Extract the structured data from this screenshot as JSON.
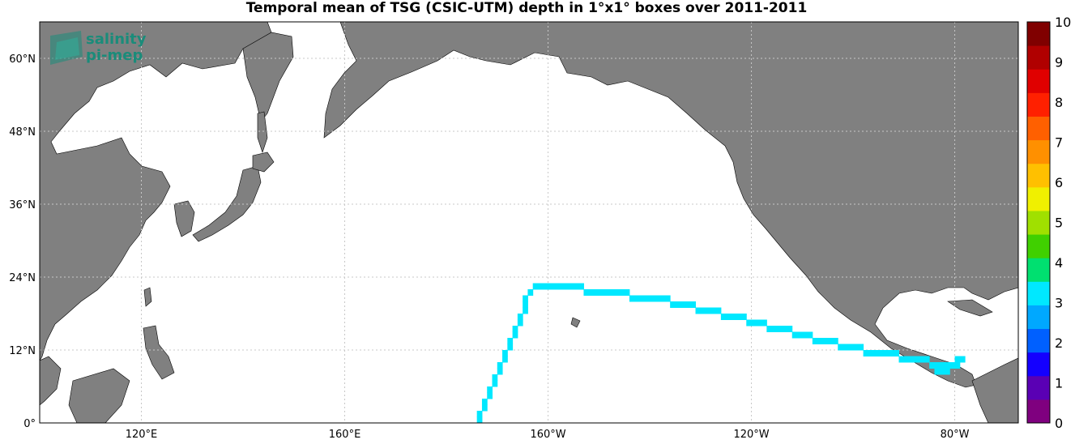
{
  "title": "Temporal mean of TSG (CSIC-UTM) depth in 1°x1° boxes over 2011-2011",
  "logo": {
    "line1": "salinity",
    "line2": "pi-mep",
    "color": "#1a8c7a"
  },
  "colors": {
    "land": "#808080",
    "ocean": "#ffffff",
    "grid": "#c8c8c8",
    "track": "#00bfff"
  },
  "map_extent": {
    "lon_min": 100,
    "lon_max": 292.5,
    "lat_min": 0,
    "lat_max": 66
  },
  "lat_labels": [
    {
      "lat": 60,
      "text": "60°N"
    },
    {
      "lat": 48,
      "text": "48°N"
    },
    {
      "lat": 36,
      "text": "36°N"
    },
    {
      "lat": 24,
      "text": "24°N"
    },
    {
      "lat": 12,
      "text": "12°N"
    },
    {
      "lat": 0,
      "text": "0°"
    }
  ],
  "lon_labels": [
    {
      "lon": 120,
      "text": "120°E"
    },
    {
      "lon": 160,
      "text": "160°E"
    },
    {
      "lon": 200,
      "text": "160°W"
    },
    {
      "lon": 240,
      "text": "120°W"
    },
    {
      "lon": 280,
      "text": "80°W"
    }
  ],
  "colorbar": {
    "min": 0,
    "max": 10,
    "ticks": [
      "0",
      "1",
      "2",
      "3",
      "4",
      "5",
      "6",
      "7",
      "8",
      "9",
      "10"
    ],
    "colors": [
      "#7f007f",
      "#5a00b4",
      "#1400ff",
      "#0060ff",
      "#00a8ff",
      "#00e8ff",
      "#00e070",
      "#40d000",
      "#a0e000",
      "#f0f000",
      "#ffc000",
      "#ff9000",
      "#ff6000",
      "#ff2000",
      "#e00000",
      "#b00000",
      "#800000"
    ]
  },
  "chart_data": {
    "type": "heatmap",
    "variable": "TSG (CSIC-UTM) depth",
    "track_value": 3.2,
    "track_points": [
      [
        -173.5,
        0.5
      ],
      [
        -173.5,
        1.5
      ],
      [
        -172.5,
        2.5
      ],
      [
        -172.5,
        3.5
      ],
      [
        -171.5,
        4.5
      ],
      [
        -171.5,
        5.5
      ],
      [
        -170.5,
        6.5
      ],
      [
        -170.5,
        7.5
      ],
      [
        -169.5,
        8.5
      ],
      [
        -169.5,
        9.5
      ],
      [
        -168.5,
        10.5
      ],
      [
        -168.5,
        11.5
      ],
      [
        -167.5,
        12.5
      ],
      [
        -167.5,
        13.5
      ],
      [
        -166.5,
        14.5
      ],
      [
        -166.5,
        15.5
      ],
      [
        -165.5,
        16.5
      ],
      [
        -165.5,
        17.5
      ],
      [
        -164.5,
        18.5
      ],
      [
        -164.5,
        19.5
      ],
      [
        -164.5,
        20.5
      ],
      [
        -163.5,
        21.5
      ],
      [
        -162.5,
        22.5
      ],
      [
        -161.5,
        22.5
      ],
      [
        -160.5,
        22.5
      ],
      [
        -159.5,
        22.5
      ],
      [
        -158.5,
        22.5
      ],
      [
        -157.5,
        22.5
      ],
      [
        -156.5,
        22.5
      ],
      [
        -155.5,
        22.5
      ],
      [
        -154.5,
        22.5
      ],
      [
        -153.5,
        22.5
      ],
      [
        -152.5,
        21.5
      ],
      [
        -151.5,
        21.5
      ],
      [
        -150.5,
        21.5
      ],
      [
        -149.5,
        21.5
      ],
      [
        -148.5,
        21.5
      ],
      [
        -147.5,
        21.5
      ],
      [
        -146.5,
        21.5
      ],
      [
        -145.5,
        21.5
      ],
      [
        -144.5,
        21.5
      ],
      [
        -143.5,
        20.5
      ],
      [
        -142.5,
        20.5
      ],
      [
        -141.5,
        20.5
      ],
      [
        -140.5,
        20.5
      ],
      [
        -139.5,
        20.5
      ],
      [
        -138.5,
        20.5
      ],
      [
        -137.5,
        20.5
      ],
      [
        -136.5,
        20.5
      ],
      [
        -135.5,
        19.5
      ],
      [
        -134.5,
        19.5
      ],
      [
        -133.5,
        19.5
      ],
      [
        -132.5,
        19.5
      ],
      [
        -131.5,
        19.5
      ],
      [
        -130.5,
        18.5
      ],
      [
        -129.5,
        18.5
      ],
      [
        -128.5,
        18.5
      ],
      [
        -127.5,
        18.5
      ],
      [
        -126.5,
        18.5
      ],
      [
        -125.5,
        17.5
      ],
      [
        -124.5,
        17.5
      ],
      [
        -123.5,
        17.5
      ],
      [
        -122.5,
        17.5
      ],
      [
        -121.5,
        17.5
      ],
      [
        -120.5,
        16.5
      ],
      [
        -119.5,
        16.5
      ],
      [
        -118.5,
        16.5
      ],
      [
        -117.5,
        16.5
      ],
      [
        -116.5,
        15.5
      ],
      [
        -115.5,
        15.5
      ],
      [
        -114.5,
        15.5
      ],
      [
        -113.5,
        15.5
      ],
      [
        -112.5,
        15.5
      ],
      [
        -111.5,
        14.5
      ],
      [
        -110.5,
        14.5
      ],
      [
        -109.5,
        14.5
      ],
      [
        -108.5,
        14.5
      ],
      [
        -107.5,
        13.5
      ],
      [
        -106.5,
        13.5
      ],
      [
        -105.5,
        13.5
      ],
      [
        -104.5,
        13.5
      ],
      [
        -103.5,
        13.5
      ],
      [
        -102.5,
        12.5
      ],
      [
        -101.5,
        12.5
      ],
      [
        -100.5,
        12.5
      ],
      [
        -99.5,
        12.5
      ],
      [
        -98.5,
        12.5
      ],
      [
        -97.5,
        11.5
      ],
      [
        -96.5,
        11.5
      ],
      [
        -95.5,
        11.5
      ],
      [
        -94.5,
        11.5
      ],
      [
        -93.5,
        11.5
      ],
      [
        -92.5,
        11.5
      ],
      [
        -91.5,
        11.5
      ],
      [
        -90.5,
        10.5
      ],
      [
        -89.5,
        10.5
      ],
      [
        -88.5,
        10.5
      ],
      [
        -87.5,
        10.5
      ],
      [
        -86.5,
        10.5
      ],
      [
        -85.5,
        10.5
      ],
      [
        -84.5,
        9.5
      ],
      [
        -83.5,
        9.5
      ],
      [
        -82.5,
        9.5
      ],
      [
        -81.5,
        9.5
      ],
      [
        -80.5,
        9.5
      ],
      [
        -79.5,
        9.5
      ],
      [
        -83.5,
        8.5
      ],
      [
        -82.5,
        8.5
      ],
      [
        -81.5,
        8.5
      ],
      [
        -78.5,
        10.5
      ],
      [
        -79.5,
        10.5
      ]
    ]
  }
}
